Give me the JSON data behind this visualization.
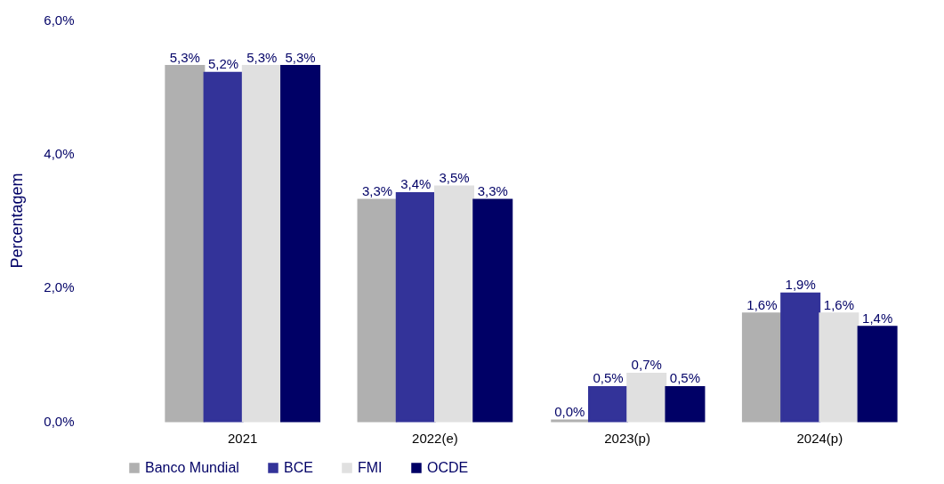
{
  "chart_data": {
    "type": "bar",
    "ylabel": "Percentagem",
    "categories": [
      "2021",
      "2022(e)",
      "2023(p)",
      "2024(p)"
    ],
    "series": [
      {
        "name": "Banco Mundial",
        "color": "#b0b0b0",
        "values": [
          5.3,
          3.3,
          0.0,
          1.6
        ],
        "value_labels": [
          "5,3%",
          "3,3%",
          "0,0%",
          "1,6%"
        ]
      },
      {
        "name": "BCE",
        "color": "#333399",
        "values": [
          5.2,
          3.4,
          0.5,
          1.9
        ],
        "value_labels": [
          "5,2%",
          "3,4%",
          "0,5%",
          "1,9%"
        ]
      },
      {
        "name": "FMI",
        "color": "#e0e0e0",
        "values": [
          5.3,
          3.5,
          0.7,
          1.6
        ],
        "value_labels": [
          "5,3%",
          "3,5%",
          "0,7%",
          "1,6%"
        ]
      },
      {
        "name": "OCDE",
        "color": "#000066",
        "values": [
          5.3,
          3.3,
          0.5,
          1.4
        ],
        "value_labels": [
          "5,3%",
          "3,3%",
          "0,5%",
          "1,4%"
        ]
      }
    ],
    "ylim": [
      0,
      6
    ],
    "yticks": [
      {
        "value": 0,
        "label": "0,0%"
      },
      {
        "value": 2,
        "label": "2,0%"
      },
      {
        "value": 4,
        "label": "4,0%"
      },
      {
        "value": 6,
        "label": "6,0%"
      }
    ],
    "grid": false,
    "legend": "bottom"
  }
}
